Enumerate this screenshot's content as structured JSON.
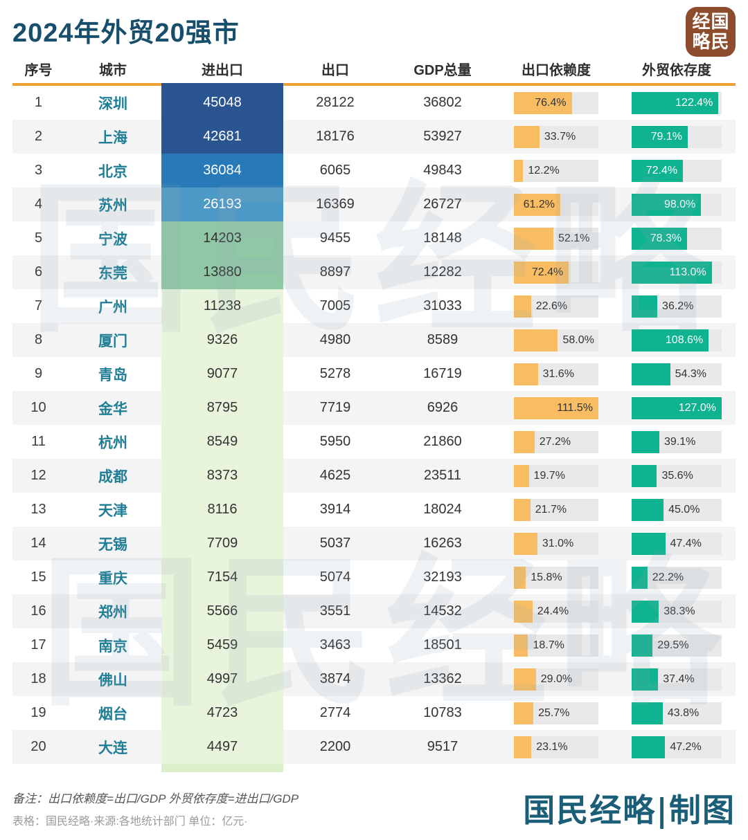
{
  "title": "2024年外贸20强市",
  "logo_chars": [
    "经",
    "国",
    "略",
    "民"
  ],
  "watermark_text": "国民经略",
  "header": [
    "序号",
    "城市",
    "进出口",
    "出口",
    "GDP总量",
    "出口依赖度",
    "外贸依存度"
  ],
  "footer": {
    "note": "备注：出口依赖度=出口/GDP 外贸依存度=进出口/GDP",
    "source": "表格：国民经略·来源:各地统计部门 单位：亿元·",
    "brand": "国民经略|制图"
  },
  "colors": {
    "accent_orange": "#efa033",
    "bar_orange": "#f8bc62",
    "bar_green": "#0fb390",
    "track_gray": "#e9e9e9",
    "title_color": "#174e6b",
    "city_color": "#1f7e95",
    "brand_color": "#1b5e78",
    "logo_brown": "#8d4c2b",
    "navy_segment": "#2b5591"
  },
  "chart_data": {
    "type": "table",
    "title": "2024年外贸20强市",
    "columns": [
      "序号",
      "城市",
      "进出口",
      "出口",
      "GDP总量",
      "出口依赖度",
      "外贸依存度"
    ],
    "unit": "亿元",
    "bar_max": {
      "export_dep": 111.5,
      "trade_dep": 127.0
    },
    "rows": [
      {
        "rank": 1,
        "city": "深圳",
        "trade": 45048,
        "export": 28122,
        "gdp": 36802,
        "export_dep": 76.4,
        "trade_dep": 122.4,
        "band": "#2b5591",
        "band_text": "#ffffff"
      },
      {
        "rank": 2,
        "city": "上海",
        "trade": 42681,
        "export": 18176,
        "gdp": 53927,
        "export_dep": 33.7,
        "trade_dep": 79.1,
        "band": "#2b5591",
        "band_text": "#ffffff"
      },
      {
        "rank": 3,
        "city": "北京",
        "trade": 36084,
        "export": 6065,
        "gdp": 49843,
        "export_dep": 12.2,
        "trade_dep": 72.4,
        "band": "#2779b8",
        "band_text": "#ffffff"
      },
      {
        "rank": 4,
        "city": "苏州",
        "trade": 26193,
        "export": 16369,
        "gdp": 26727,
        "export_dep": 61.2,
        "trade_dep": 98.0,
        "band": "#4e9ac6",
        "band_text": "#ffffff"
      },
      {
        "rank": 5,
        "city": "宁波",
        "trade": 14203,
        "export": 9455,
        "gdp": 18148,
        "export_dep": 52.1,
        "trade_dep": 78.3,
        "band": "#90c8a5",
        "band_text": "#333333"
      },
      {
        "rank": 6,
        "city": "东莞",
        "trade": 13880,
        "export": 8897,
        "gdp": 12282,
        "export_dep": 72.4,
        "trade_dep": 113.0,
        "band": "#90c8a5",
        "band_text": "#333333"
      },
      {
        "rank": 7,
        "city": "广州",
        "trade": 11238,
        "export": 7005,
        "gdp": 31033,
        "export_dep": 22.6,
        "trade_dep": 36.2,
        "band": "#e9f4dc",
        "band_text": "#333333"
      },
      {
        "rank": 8,
        "city": "厦门",
        "trade": 9326,
        "export": 4980,
        "gdp": 8589,
        "export_dep": 58.0,
        "trade_dep": 108.6,
        "band": "#e9f4dc",
        "band_text": "#333333"
      },
      {
        "rank": 9,
        "city": "青岛",
        "trade": 9077,
        "export": 5278,
        "gdp": 16719,
        "export_dep": 31.6,
        "trade_dep": 54.3,
        "band": "#e9f4dc",
        "band_text": "#333333"
      },
      {
        "rank": 10,
        "city": "金华",
        "trade": 8795,
        "export": 7719,
        "gdp": 6926,
        "export_dep": 111.5,
        "trade_dep": 127.0,
        "band": "#e9f4dc",
        "band_text": "#333333"
      },
      {
        "rank": 11,
        "city": "杭州",
        "trade": 8549,
        "export": 5950,
        "gdp": 21860,
        "export_dep": 27.2,
        "trade_dep": 39.1,
        "band": "#e9f4dc",
        "band_text": "#333333"
      },
      {
        "rank": 12,
        "city": "成都",
        "trade": 8373,
        "export": 4625,
        "gdp": 23511,
        "export_dep": 19.7,
        "trade_dep": 35.6,
        "band": "#e9f4dc",
        "band_text": "#333333"
      },
      {
        "rank": 13,
        "city": "天津",
        "trade": 8116,
        "export": 3914,
        "gdp": 18024,
        "export_dep": 21.7,
        "trade_dep": 45.0,
        "band": "#e9f4dc",
        "band_text": "#333333"
      },
      {
        "rank": 14,
        "city": "无锡",
        "trade": 7709,
        "export": 5037,
        "gdp": 16263,
        "export_dep": 31.0,
        "trade_dep": 47.4,
        "band": "#e9f4dc",
        "band_text": "#333333"
      },
      {
        "rank": 15,
        "city": "重庆",
        "trade": 7154,
        "export": 5074,
        "gdp": 32193,
        "export_dep": 15.8,
        "trade_dep": 22.2,
        "band": "#e9f4dc",
        "band_text": "#333333"
      },
      {
        "rank": 16,
        "city": "郑州",
        "trade": 5566,
        "export": 3551,
        "gdp": 14532,
        "export_dep": 24.4,
        "trade_dep": 38.3,
        "band": "#e9f4dc",
        "band_text": "#333333"
      },
      {
        "rank": 17,
        "city": "南京",
        "trade": 5459,
        "export": 3463,
        "gdp": 18501,
        "export_dep": 18.7,
        "trade_dep": 29.5,
        "band": "#e9f4dc",
        "band_text": "#333333"
      },
      {
        "rank": 18,
        "city": "佛山",
        "trade": 4997,
        "export": 3874,
        "gdp": 13362,
        "export_dep": 29.0,
        "trade_dep": 37.4,
        "band": "#e9f4dc",
        "band_text": "#333333"
      },
      {
        "rank": 19,
        "city": "烟台",
        "trade": 4723,
        "export": 2774,
        "gdp": 10783,
        "export_dep": 25.7,
        "trade_dep": 43.8,
        "band": "#e9f4dc",
        "band_text": "#333333"
      },
      {
        "rank": 20,
        "city": "大连",
        "trade": 4497,
        "export": 2200,
        "gdp": 9517,
        "export_dep": 23.1,
        "trade_dep": 47.2,
        "band": "#e9f4dc",
        "band_text": "#333333"
      }
    ]
  }
}
